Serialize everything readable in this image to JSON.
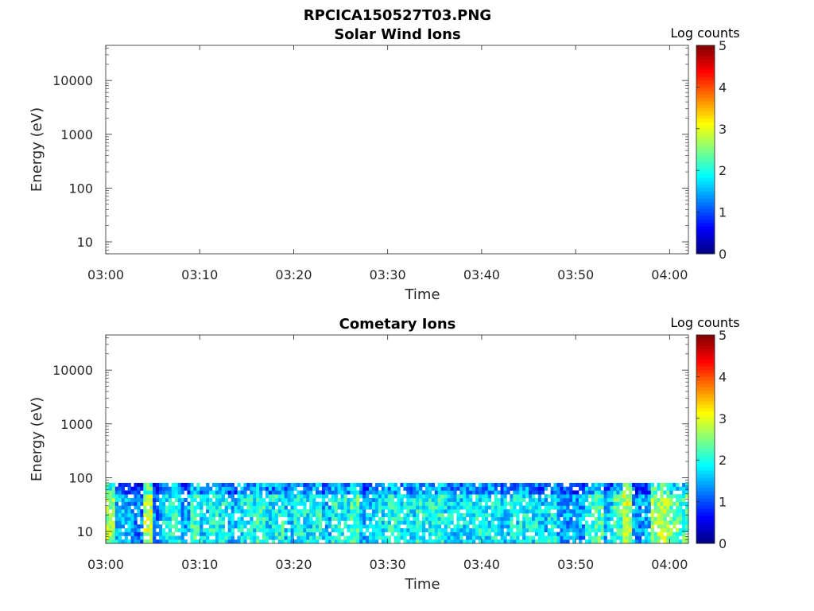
{
  "figure": {
    "title": "RPCICA150527T03.PNG"
  },
  "chart_data": [
    {
      "type": "heatmap",
      "title": "Solar Wind Ions",
      "xlabel": "Time",
      "ylabel": "Energy (eV)",
      "x_tick_labels": [
        "03:00",
        "03:10",
        "03:20",
        "03:30",
        "03:40",
        "03:50",
        "04:00"
      ],
      "x_range": [
        "03:00",
        "04:02"
      ],
      "y_tick_labels": [
        "10",
        "100",
        "1000",
        "10000"
      ],
      "y_scale": "log",
      "y_range": [
        6,
        45000
      ],
      "colorbar": {
        "label": "Log counts",
        "ticks": [
          "0",
          "1",
          "2",
          "3",
          "4",
          "5"
        ],
        "range": [
          0,
          5
        ],
        "colormap": "jet"
      },
      "data": []
    },
    {
      "type": "heatmap",
      "title": "Cometary Ions",
      "xlabel": "Time",
      "ylabel": "Energy (eV)",
      "x_tick_labels": [
        "03:00",
        "03:10",
        "03:20",
        "03:30",
        "03:40",
        "03:50",
        "04:00"
      ],
      "x_range": [
        "03:00",
        "04:02"
      ],
      "y_tick_labels": [
        "10",
        "100",
        "1000",
        "10000"
      ],
      "y_scale": "log",
      "y_range": [
        6,
        45000
      ],
      "colorbar": {
        "label": "Log counts",
        "ticks": [
          "0",
          "1",
          "2",
          "3",
          "4",
          "5"
        ],
        "range": [
          0,
          5
        ],
        "colormap": "jet"
      },
      "energy_max_eV": 80,
      "data": [
        {
          "t": "03:00",
          "log_counts": 2.6
        },
        {
          "t": "03:01",
          "log_counts": 1.6
        },
        {
          "t": "03:02",
          "log_counts": 1.4
        },
        {
          "t": "03:03",
          "log_counts": 1.2
        },
        {
          "t": "03:04",
          "log_counts": 2.8
        },
        {
          "t": "03:05",
          "log_counts": 1.3
        },
        {
          "t": "03:06",
          "log_counts": 1.8
        },
        {
          "t": "03:07",
          "log_counts": 2.0
        },
        {
          "t": "03:08",
          "log_counts": 1.5
        },
        {
          "t": "03:09",
          "log_counts": 2.2
        },
        {
          "t": "03:10",
          "log_counts": 1.7
        },
        {
          "t": "03:11",
          "log_counts": 2.0
        },
        {
          "t": "03:12",
          "log_counts": 1.9
        },
        {
          "t": "03:13",
          "log_counts": 1.6
        },
        {
          "t": "03:14",
          "log_counts": 1.8
        },
        {
          "t": "03:15",
          "log_counts": 1.9
        },
        {
          "t": "03:16",
          "log_counts": 2.1
        },
        {
          "t": "03:17",
          "log_counts": 1.8
        },
        {
          "t": "03:18",
          "log_counts": 2.0
        },
        {
          "t": "03:19",
          "log_counts": 1.7
        },
        {
          "t": "03:20",
          "log_counts": 1.9
        },
        {
          "t": "03:21",
          "log_counts": 1.8
        },
        {
          "t": "03:22",
          "log_counts": 2.0
        },
        {
          "t": "03:23",
          "log_counts": 1.6
        },
        {
          "t": "03:24",
          "log_counts": 2.0
        },
        {
          "t": "03:25",
          "log_counts": 1.9
        },
        {
          "t": "03:26",
          "log_counts": 2.2
        },
        {
          "t": "03:27",
          "log_counts": 1.5
        },
        {
          "t": "03:28",
          "log_counts": 1.6
        },
        {
          "t": "03:29",
          "log_counts": 1.8
        },
        {
          "t": "03:30",
          "log_counts": 1.9
        },
        {
          "t": "03:31",
          "log_counts": 1.9
        },
        {
          "t": "03:32",
          "log_counts": 1.8
        },
        {
          "t": "03:33",
          "log_counts": 2.0
        },
        {
          "t": "03:34",
          "log_counts": 1.9
        },
        {
          "t": "03:35",
          "log_counts": 2.0
        },
        {
          "t": "03:36",
          "log_counts": 1.8
        },
        {
          "t": "03:37",
          "log_counts": 1.7
        },
        {
          "t": "03:38",
          "log_counts": 1.8
        },
        {
          "t": "03:39",
          "log_counts": 1.9
        },
        {
          "t": "03:40",
          "log_counts": 1.8
        },
        {
          "t": "03:41",
          "log_counts": 1.9
        },
        {
          "t": "03:42",
          "log_counts": 1.7
        },
        {
          "t": "03:43",
          "log_counts": 1.8
        },
        {
          "t": "03:44",
          "log_counts": 1.9
        },
        {
          "t": "03:45",
          "log_counts": 1.8
        },
        {
          "t": "03:46",
          "log_counts": 1.6
        },
        {
          "t": "03:47",
          "log_counts": 1.9
        },
        {
          "t": "03:48",
          "log_counts": 1.5
        },
        {
          "t": "03:49",
          "log_counts": 1.4
        },
        {
          "t": "03:50",
          "log_counts": 1.4
        },
        {
          "t": "03:51",
          "log_counts": 2.0
        },
        {
          "t": "03:52",
          "log_counts": 2.2
        },
        {
          "t": "03:53",
          "log_counts": 1.6
        },
        {
          "t": "03:54",
          "log_counts": 2.2
        },
        {
          "t": "03:55",
          "log_counts": 2.8
        },
        {
          "t": "03:56",
          "log_counts": 1.4
        },
        {
          "t": "03:57",
          "log_counts": 1.5
        },
        {
          "t": "03:58",
          "log_counts": 2.6
        },
        {
          "t": "03:59",
          "log_counts": 2.7
        },
        {
          "t": "04:00",
          "log_counts": 2.3
        },
        {
          "t": "04:01",
          "log_counts": 2.2
        }
      ]
    }
  ]
}
